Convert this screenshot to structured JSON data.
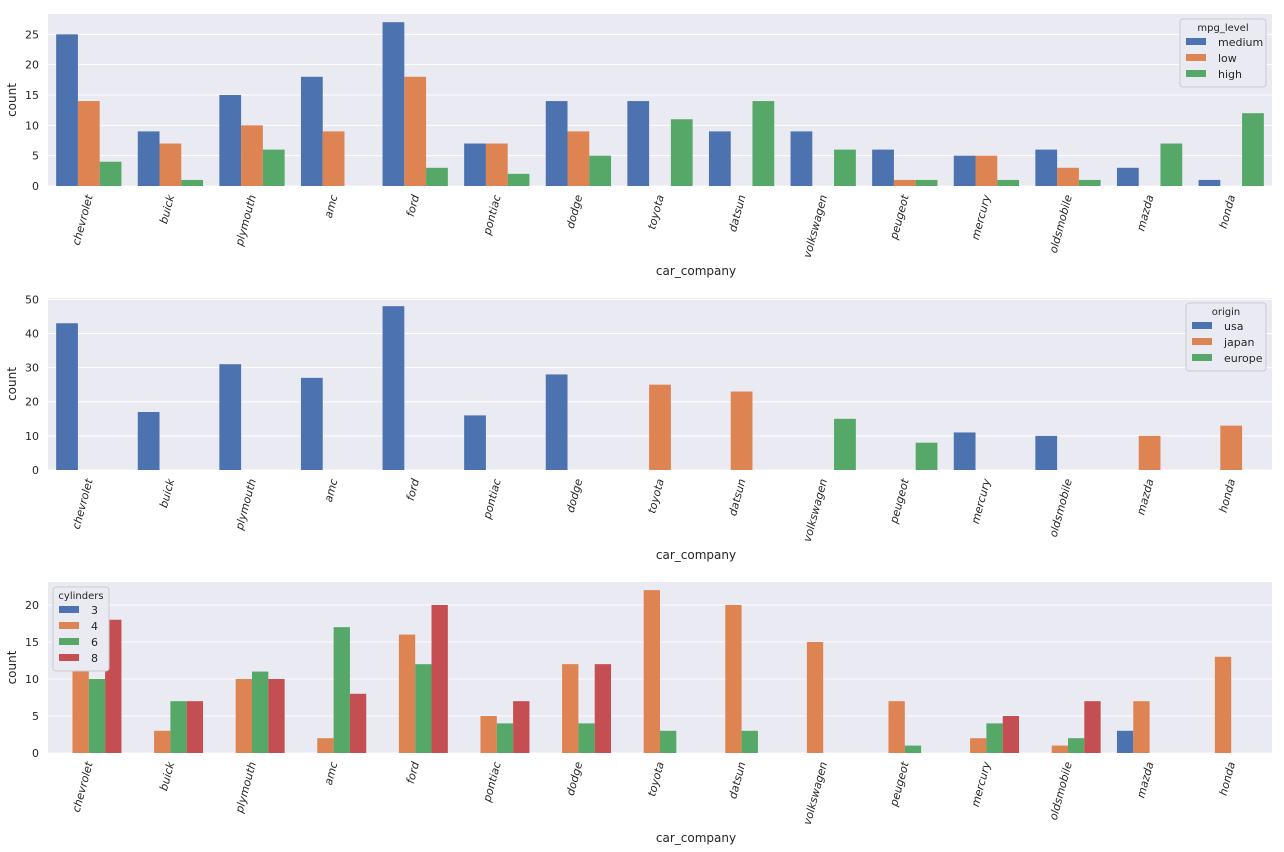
{
  "colors": {
    "plot_bg": "#eaeaf2",
    "grid": "#ffffff",
    "text": "#262626",
    "legend_bg": "#eaeaf2",
    "legend_border": "#cccccc"
  },
  "chart_data": [
    {
      "type": "bar",
      "xlabel": "car_company",
      "ylabel": "count",
      "ylim": [
        0,
        28.35
      ],
      "yticks": [
        0,
        5,
        10,
        15,
        20,
        25
      ],
      "grid": true,
      "legend": {
        "title": "mpg_level",
        "position": "top-right"
      },
      "categories": [
        "chevrolet",
        "buick",
        "plymouth",
        "amc",
        "ford",
        "pontiac",
        "dodge",
        "toyota",
        "datsun",
        "volkswagen",
        "peugeot",
        "mercury",
        "oldsmobile",
        "mazda",
        "honda"
      ],
      "series": [
        {
          "name": "medium",
          "color": "#4c72b0",
          "values": [
            25,
            9,
            15,
            18,
            27,
            7,
            14,
            14,
            9,
            9,
            6,
            5,
            6,
            3,
            1
          ]
        },
        {
          "name": "low",
          "color": "#dd8452",
          "values": [
            14,
            7,
            10,
            9,
            18,
            7,
            9,
            0,
            0,
            0,
            1,
            5,
            3,
            0,
            0
          ]
        },
        {
          "name": "high",
          "color": "#55a868",
          "values": [
            4,
            1,
            6,
            0,
            3,
            2,
            5,
            11,
            14,
            6,
            1,
            1,
            1,
            7,
            12
          ]
        }
      ]
    },
    {
      "type": "bar",
      "xlabel": "car_company",
      "ylabel": "count",
      "ylim": [
        0,
        50.4
      ],
      "yticks": [
        0,
        10,
        20,
        30,
        40,
        50
      ],
      "grid": true,
      "legend": {
        "title": "origin",
        "position": "top-right"
      },
      "categories": [
        "chevrolet",
        "buick",
        "plymouth",
        "amc",
        "ford",
        "pontiac",
        "dodge",
        "toyota",
        "datsun",
        "volkswagen",
        "peugeot",
        "mercury",
        "oldsmobile",
        "mazda",
        "honda"
      ],
      "series": [
        {
          "name": "usa",
          "color": "#4c72b0",
          "values": [
            43,
            17,
            31,
            27,
            48,
            16,
            28,
            0,
            0,
            0,
            0,
            11,
            10,
            0,
            0
          ]
        },
        {
          "name": "japan",
          "color": "#dd8452",
          "values": [
            0,
            0,
            0,
            0,
            0,
            0,
            0,
            25,
            23,
            0,
            0,
            0,
            0,
            10,
            13
          ]
        },
        {
          "name": "europe",
          "color": "#55a868",
          "values": [
            0,
            0,
            0,
            0,
            0,
            0,
            0,
            0,
            0,
            15,
            8,
            0,
            0,
            0,
            0
          ]
        }
      ]
    },
    {
      "type": "bar",
      "xlabel": "car_company",
      "ylabel": "count",
      "ylim": [
        0,
        23.1
      ],
      "yticks": [
        0,
        5,
        10,
        15,
        20
      ],
      "grid": true,
      "legend": {
        "title": "cylinders",
        "position": "top-left"
      },
      "categories": [
        "chevrolet",
        "buick",
        "plymouth",
        "amc",
        "ford",
        "pontiac",
        "dodge",
        "toyota",
        "datsun",
        "volkswagen",
        "peugeot",
        "mercury",
        "oldsmobile",
        "mazda",
        "honda"
      ],
      "series": [
        {
          "name": "3",
          "color": "#4c72b0",
          "values": [
            0,
            0,
            0,
            0,
            0,
            0,
            0,
            0,
            0,
            0,
            0,
            0,
            0,
            3,
            0
          ]
        },
        {
          "name": "4",
          "color": "#dd8452",
          "values": [
            15,
            3,
            10,
            2,
            16,
            5,
            12,
            22,
            20,
            15,
            7,
            2,
            1,
            7,
            13
          ]
        },
        {
          "name": "6",
          "color": "#55a868",
          "values": [
            10,
            7,
            11,
            17,
            12,
            4,
            4,
            3,
            3,
            0,
            1,
            4,
            2,
            0,
            0
          ]
        },
        {
          "name": "8",
          "color": "#c44e52",
          "values": [
            18,
            7,
            10,
            8,
            20,
            7,
            12,
            0,
            0,
            0,
            0,
            5,
            7,
            0,
            0
          ]
        }
      ]
    }
  ]
}
